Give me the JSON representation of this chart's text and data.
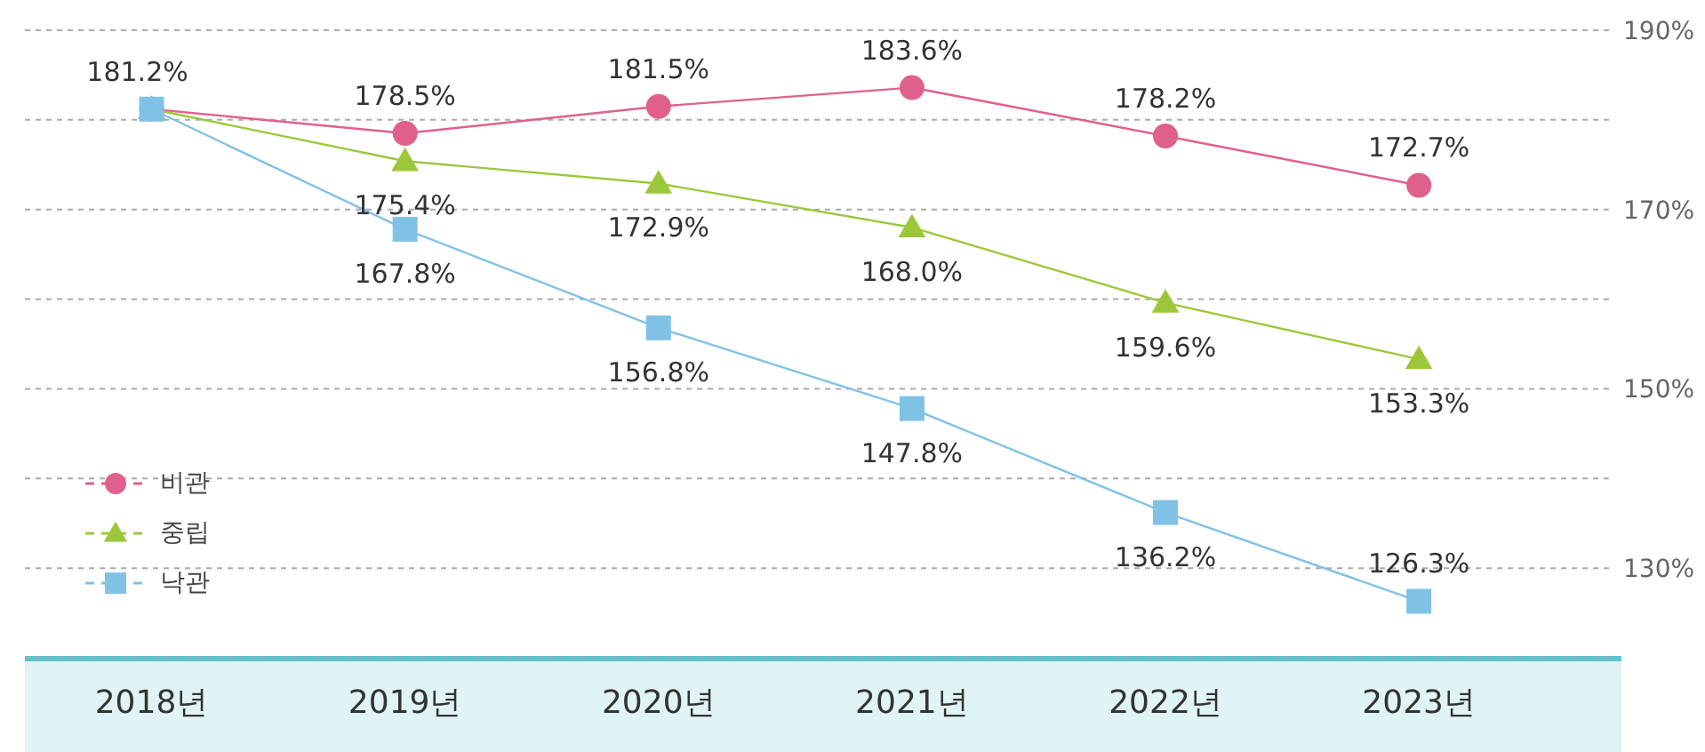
{
  "chart_data": {
    "type": "line",
    "categories": [
      "2018년",
      "2019년",
      "2020년",
      "2021년",
      "2022년",
      "2023년"
    ],
    "series": [
      {
        "name": "비관",
        "color": "#e0608c",
        "marker": "circle",
        "values": [
          181.2,
          178.5,
          181.5,
          183.6,
          178.2,
          172.7
        ],
        "value_labels": [
          "181.2%",
          "178.5%",
          "181.5%",
          "183.6%",
          "178.2%",
          "172.7%"
        ]
      },
      {
        "name": "중립",
        "color": "#9cc73b",
        "marker": "triangle",
        "values": [
          181.2,
          175.4,
          172.9,
          168.0,
          159.6,
          153.3
        ],
        "value_labels": [
          null,
          "175.4%",
          "172.9%",
          "168.0%",
          "159.6%",
          "153.3%"
        ]
      },
      {
        "name": "낙관",
        "color": "#80c2e6",
        "marker": "square",
        "values": [
          181.2,
          167.8,
          156.8,
          147.8,
          136.2,
          126.3
        ],
        "value_labels": [
          null,
          "167.8%",
          "156.8%",
          "147.8%",
          "136.2%",
          "126.3%"
        ]
      }
    ],
    "ylim": [
      120,
      190
    ],
    "yticks": [
      {
        "value": 130,
        "label": "130%"
      },
      {
        "value": 140,
        "label": null
      },
      {
        "value": 150,
        "label": "150%"
      },
      {
        "value": 160,
        "label": null
      },
      {
        "value": 170,
        "label": "170%"
      },
      {
        "value": 180,
        "label": null
      },
      {
        "value": 190,
        "label": "190%"
      }
    ],
    "grid": "y",
    "legend": "bottom left",
    "line_style": "solid"
  }
}
